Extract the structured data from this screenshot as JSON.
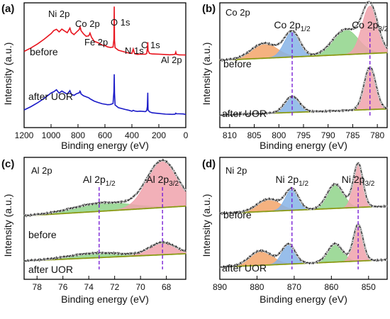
{
  "colors": {
    "survey_before": "#e8141e",
    "survey_after": "#1a1ac8",
    "envelope": "#1a1a1a",
    "fit": "#c8c8c8",
    "baseline": "#8a9a14",
    "peak_orange": "#f3a46a",
    "peak_blue": "#86b3e6",
    "peak_green": "#8fd48a",
    "peak_pink": "#f0a2ac",
    "marker": "#7b22d6"
  },
  "chart_data": [
    {
      "panel": "(a)",
      "type": "line",
      "xlabel": "Binding energy (eV)",
      "ylabel": "Intensity (a.u.)",
      "xlim": [
        1200,
        0
      ],
      "xticks": [
        1200,
        1000,
        800,
        600,
        400,
        200,
        0
      ],
      "series": [
        {
          "name": "before",
          "color": "#e8141e",
          "offset": 0.58,
          "x": [
            1200,
            1150,
            1100,
            1050,
            1000,
            980,
            960,
            940,
            920,
            900,
            880,
            870,
            860,
            850,
            830,
            810,
            790,
            785,
            781,
            778,
            760,
            740,
            720,
            711,
            700,
            680,
            650,
            620,
            600,
            580,
            560,
            540,
            533,
            531,
            529,
            525,
            500,
            450,
            420,
            400,
            390,
            380,
            360,
            340,
            300,
            290,
            285,
            282,
            280,
            270,
            250,
            200,
            150,
            120,
            100,
            80,
            74,
            70,
            50,
            20,
            0
          ],
          "y": [
            0.05,
            0.09,
            0.14,
            0.2,
            0.27,
            0.31,
            0.33,
            0.3,
            0.34,
            0.32,
            0.3,
            0.33,
            0.36,
            0.3,
            0.27,
            0.3,
            0.33,
            0.36,
            0.34,
            0.31,
            0.27,
            0.24,
            0.25,
            0.29,
            0.24,
            0.19,
            0.17,
            0.14,
            0.13,
            0.11,
            0.1,
            0.1,
            0.2,
            0.62,
            0.18,
            0.09,
            0.06,
            0.04,
            0.03,
            0.03,
            0.09,
            0.03,
            0.02,
            0.02,
            0.015,
            0.02,
            0.08,
            0.16,
            0.05,
            0.015,
            0.01,
            0.01,
            0.01,
            0.01,
            0.015,
            0.02,
            0.05,
            0.02,
            0.01,
            0.005,
            0
          ]
        },
        {
          "name": "after UOR",
          "color": "#1a1ac8",
          "offset": 0.1,
          "x": [
            1200,
            1150,
            1100,
            1050,
            1000,
            980,
            960,
            940,
            920,
            900,
            880,
            870,
            860,
            850,
            830,
            810,
            790,
            785,
            781,
            778,
            760,
            740,
            720,
            711,
            700,
            680,
            650,
            620,
            600,
            580,
            560,
            540,
            533,
            531,
            529,
            525,
            500,
            450,
            420,
            400,
            390,
            380,
            360,
            340,
            300,
            290,
            285,
            282,
            280,
            270,
            250,
            200,
            150,
            120,
            100,
            80,
            74,
            70,
            50,
            20,
            0
          ],
          "y": [
            0.06,
            0.1,
            0.15,
            0.21,
            0.28,
            0.3,
            0.33,
            0.29,
            0.32,
            0.3,
            0.28,
            0.3,
            0.32,
            0.27,
            0.25,
            0.27,
            0.28,
            0.3,
            0.29,
            0.27,
            0.25,
            0.24,
            0.23,
            0.22,
            0.21,
            0.19,
            0.17,
            0.15,
            0.14,
            0.13,
            0.13,
            0.14,
            0.3,
            0.52,
            0.28,
            0.13,
            0.1,
            0.08,
            0.07,
            0.06,
            0.07,
            0.06,
            0.05,
            0.05,
            0.04,
            0.05,
            0.1,
            0.28,
            0.06,
            0.04,
            0.03,
            0.025,
            0.02,
            0.02,
            0.02,
            0.02,
            0.03,
            0.02,
            0.015,
            0.01,
            0
          ]
        }
      ],
      "annotations": [
        "Ni 2p",
        "Co 2p",
        "Fe 2p",
        "O 1s",
        "N 1s",
        "C 1s",
        "Al 2p"
      ],
      "labels": [
        "before",
        "after UOR"
      ]
    },
    {
      "panel": "(b)",
      "type": "area",
      "title": "Co 2p",
      "xlabel": "Binding energy (eV)",
      "ylabel": "Intensity (a.u.)",
      "xlim": [
        812,
        778
      ],
      "xticks": [
        810,
        805,
        800,
        795,
        790,
        785,
        780
      ],
      "markers": [
        797.3,
        781.5
      ],
      "peak_labels": [
        {
          "text": "Co 2p",
          "sub": "1/2",
          "x": 797.3
        },
        {
          "text": "Co 2p",
          "sub": "3/2",
          "x": 781.5
        }
      ],
      "series": [
        {
          "name": "before",
          "offset": 0.52,
          "baseline_slope": 0.06,
          "peaks": [
            {
              "center": 803.0,
              "height": 0.12,
              "width": 2.6,
              "color": "orange"
            },
            {
              "center": 797.3,
              "height": 0.2,
              "width": 1.6,
              "color": "blue"
            },
            {
              "center": 786.5,
              "height": 0.2,
              "width": 2.6,
              "color": "green"
            },
            {
              "center": 781.5,
              "height": 0.38,
              "width": 1.6,
              "color": "pink"
            }
          ]
        },
        {
          "name": "after UOR",
          "offset": 0.08,
          "baseline_slope": 0.05,
          "peaks": [
            {
              "center": 797.3,
              "height": 0.13,
              "width": 1.5,
              "color": "blue"
            },
            {
              "center": 781.5,
              "height": 0.34,
              "width": 1.2,
              "color": "pink"
            }
          ]
        }
      ],
      "labels": [
        "before",
        "after UOR"
      ]
    },
    {
      "panel": "(c)",
      "type": "area",
      "title": "Al 2p",
      "xlabel": "Binding energy (eV)",
      "ylabel": "Intensity (a.u.)",
      "xlim": [
        79,
        66.5
      ],
      "xticks": [
        78,
        76,
        74,
        72,
        70,
        68
      ],
      "markers": [
        73.2,
        68.3
      ],
      "peak_labels": [
        {
          "text": "Al 2p",
          "sub": "1/2",
          "x": 73.2
        },
        {
          "text": "Al 2p",
          "sub": "3/2",
          "x": 68.3
        }
      ],
      "series": [
        {
          "name": "before",
          "offset": 0.5,
          "baseline_slope": 0.08,
          "peaks": [
            {
              "center": 73.0,
              "height": 0.07,
              "width": 2.2,
              "color": "green"
            },
            {
              "center": 68.3,
              "height": 0.38,
              "width": 1.2,
              "color": "pink"
            }
          ]
        },
        {
          "name": "after UOR",
          "offset": 0.13,
          "baseline_slope": 0.06,
          "peaks": [
            {
              "center": 73.5,
              "height": 0.04,
              "width": 2.0,
              "color": "green"
            },
            {
              "center": 68.3,
              "height": 0.1,
              "width": 1.0,
              "color": "pink"
            }
          ]
        }
      ],
      "labels": [
        "before",
        "after UOR"
      ]
    },
    {
      "panel": "(d)",
      "type": "area",
      "title": "Ni 2p",
      "xlabel": "Binding energy (eV)",
      "ylabel": "Intensity (a.u.)",
      "xlim": [
        890,
        845
      ],
      "xticks": [
        890,
        880,
        870,
        860,
        850
      ],
      "markers": [
        870.6,
        852.8
      ],
      "peak_labels": [
        {
          "text": "Ni 2p",
          "sub": "1/2",
          "x": 870.6
        },
        {
          "text": "Ni 2p",
          "sub": "3/2",
          "x": 852.8
        }
      ],
      "series": [
        {
          "name": "before",
          "offset": 0.52,
          "baseline_slope": 0.06,
          "peaks": [
            {
              "center": 877.0,
              "height": 0.1,
              "width": 3.0,
              "color": "orange"
            },
            {
              "center": 870.6,
              "height": 0.17,
              "width": 1.8,
              "color": "blue"
            },
            {
              "center": 859.0,
              "height": 0.2,
              "width": 2.2,
              "color": "green"
            },
            {
              "center": 852.8,
              "height": 0.36,
              "width": 1.3,
              "color": "pink"
            }
          ]
        },
        {
          "name": "after UOR",
          "offset": 0.08,
          "baseline_slope": 0.06,
          "peaks": [
            {
              "center": 879.0,
              "height": 0.12,
              "width": 3.0,
              "color": "orange"
            },
            {
              "center": 871.5,
              "height": 0.16,
              "width": 1.8,
              "color": "blue"
            },
            {
              "center": 859.0,
              "height": 0.15,
              "width": 2.0,
              "color": "green"
            },
            {
              "center": 852.8,
              "height": 0.3,
              "width": 1.3,
              "color": "pink"
            }
          ]
        }
      ],
      "labels": [
        "before",
        "after UOR"
      ]
    }
  ]
}
